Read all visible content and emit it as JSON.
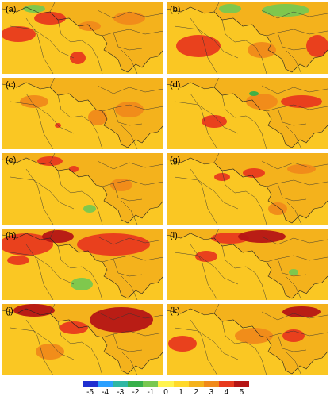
{
  "panels": [
    {
      "label": "(a)",
      "variant": 1
    },
    {
      "label": "(b)",
      "variant": 2
    },
    {
      "label": "(c)",
      "variant": 3
    },
    {
      "label": "(d)",
      "variant": 4
    },
    {
      "label": "(e)",
      "variant": 5
    },
    {
      "label": "(g)",
      "variant": 6
    },
    {
      "label": "(h)",
      "variant": 7
    },
    {
      "label": "(i)",
      "variant": 8
    },
    {
      "label": "(j)",
      "variant": 9
    },
    {
      "label": "(k)",
      "variant": 10
    }
  ],
  "colorbar": {
    "ticks": [
      "-5",
      "-4",
      "-3",
      "-2",
      "-1",
      "0",
      "1",
      "2",
      "3",
      "4",
      "5"
    ],
    "colors": [
      "#1f2fd0",
      "#2aa0ff",
      "#2fb7a3",
      "#37b04a",
      "#78c850",
      "#fff44d",
      "#ffd92a",
      "#f4b21c",
      "#f08a1a",
      "#e83a1e",
      "#b51515"
    ]
  }
}
